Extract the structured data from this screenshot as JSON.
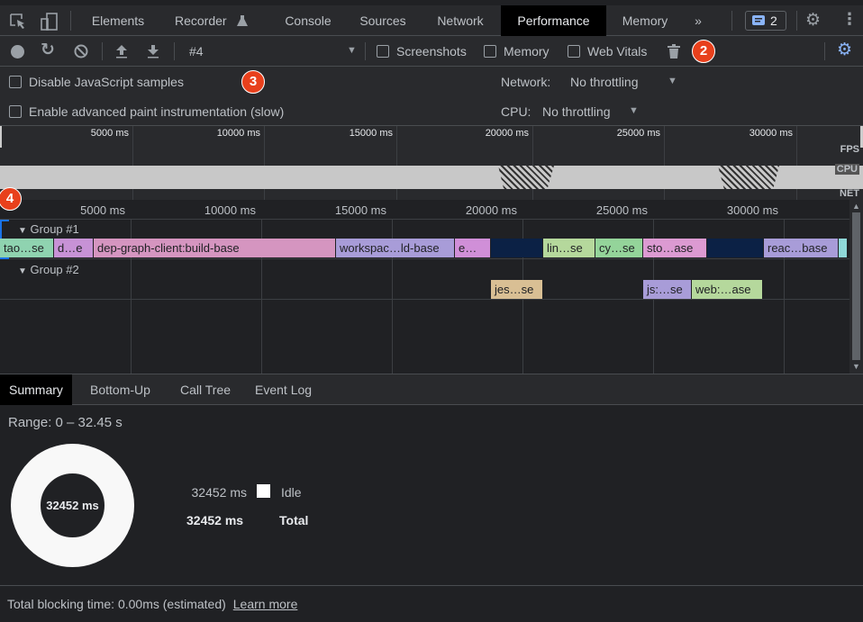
{
  "tabs": {
    "items": [
      "Elements",
      "Recorder",
      "Console",
      "Sources",
      "Network",
      "Performance",
      "Memory"
    ],
    "active": "Performance",
    "issues_count": "2"
  },
  "toolbar": {
    "profile": "#4",
    "screenshots": "Screenshots",
    "memory": "Memory",
    "web_vitals": "Web Vitals"
  },
  "settings": {
    "disable_js": "Disable JavaScript samples",
    "adv_paint": "Enable advanced paint instrumentation (slow)",
    "network_label": "Network:",
    "network_value": "No throttling",
    "cpu_label": "CPU:",
    "cpu_value": "No throttling"
  },
  "overview": {
    "ticks": [
      "5000 ms",
      "10000 ms",
      "15000 ms",
      "20000 ms",
      "25000 ms",
      "30000 ms"
    ],
    "fps": "FPS",
    "cpu": "CPU",
    "net": "NET"
  },
  "flame": {
    "ticks": [
      "5000 ms",
      "10000 ms",
      "15000 ms",
      "20000 ms",
      "25000 ms",
      "30000 ms"
    ],
    "group1": "Group #1",
    "group2": "Group #2",
    "track1": [
      {
        "label": "tao…se",
        "color": "#8fd3b0"
      },
      {
        "label": "d…e",
        "color": "#c792d6"
      },
      {
        "label": "dep-graph-client:build-base",
        "color": "#d595c0"
      },
      {
        "label": "workspac…ld-base",
        "color": "#a89cd8"
      },
      {
        "label": "e…",
        "color": "#d08fd8"
      },
      {
        "label": "",
        "color": "#0b2145"
      },
      {
        "label": "lin…se",
        "color": "#b5d89c"
      },
      {
        "label": "cy…se",
        "color": "#94d49a"
      },
      {
        "label": "sto…ase",
        "color": "#dc9ad2"
      },
      {
        "label": "",
        "color": "#0b2145"
      },
      {
        "label": "reac…base",
        "color": "#a89cd8"
      },
      {
        "label": "",
        "color": "#8fd8d8"
      }
    ],
    "track2": [
      {
        "label": "jes…se",
        "color": "#d9bf94"
      },
      {
        "label": "js:…se",
        "color": "#a89cd8"
      },
      {
        "label": "web:…ase",
        "color": "#b5d89c"
      }
    ]
  },
  "bottom_tabs": [
    "Summary",
    "Bottom-Up",
    "Call Tree",
    "Event Log"
  ],
  "summary": {
    "range": "Range: 0 – 32.45 s",
    "total_ms": "32452 ms",
    "idle_ms": "32452 ms",
    "idle_label": "Idle",
    "total_value": "32452 ms",
    "total_label": "Total"
  },
  "footer": {
    "text": "Total blocking time: 0.00ms (estimated)",
    "link": "Learn more"
  },
  "badges": [
    "2",
    "3",
    "4"
  ]
}
